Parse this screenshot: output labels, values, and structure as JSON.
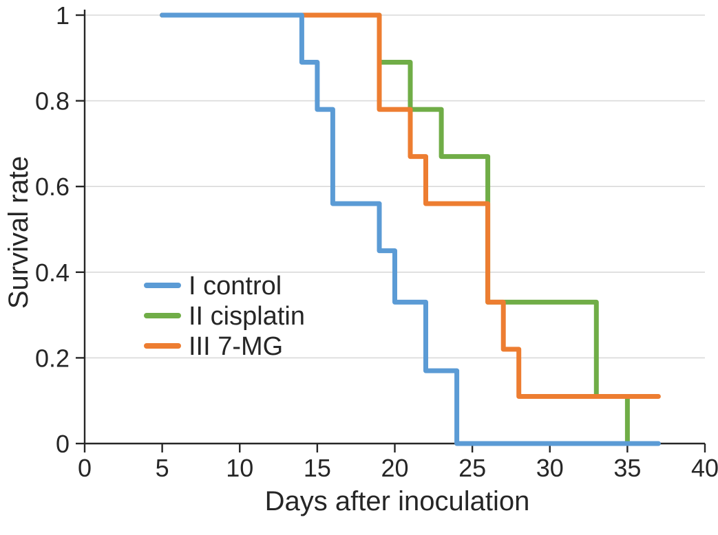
{
  "figure": {
    "background": "#ffffff",
    "text_color": "#262626",
    "axis_color": "#262626",
    "gridline_color": "#d9d9d9"
  },
  "chart_data": {
    "type": "line",
    "subtype": "step-survival",
    "title": "",
    "xlabel": "Days after inoculation",
    "ylabel": "Survival rate",
    "xlim": [
      0,
      40
    ],
    "ylim": [
      0,
      1
    ],
    "xticks": [
      0,
      5,
      10,
      15,
      20,
      25,
      30,
      35,
      40
    ],
    "xtick_labels": [
      "0",
      "5",
      "10",
      "15",
      "20",
      "25",
      "30",
      "35",
      "40"
    ],
    "yticks": [
      0,
      0.2,
      0.4,
      0.6,
      0.8,
      1
    ],
    "ytick_labels": [
      "0",
      "0.2",
      "0.4",
      "0.6",
      "0.8",
      "1"
    ],
    "grid": "horizontal-only",
    "legend_position": "inside-middle-left",
    "legend": [
      {
        "label": "I control",
        "color": "#5B9BD5"
      },
      {
        "label": "II cisplatin",
        "color": "#70AD47"
      },
      {
        "label": "III 7-MG",
        "color": "#ED7D31"
      }
    ],
    "series": [
      {
        "name": "I control",
        "color": "#5B9BD5",
        "zorder": 3,
        "points": [
          [
            5,
            1
          ],
          [
            14,
            1
          ],
          [
            14,
            0.89
          ],
          [
            15,
            0.89
          ],
          [
            15,
            0.78
          ],
          [
            16,
            0.78
          ],
          [
            16,
            0.56
          ],
          [
            19,
            0.56
          ],
          [
            19,
            0.45
          ],
          [
            20,
            0.45
          ],
          [
            20,
            0.33
          ],
          [
            22,
            0.33
          ],
          [
            22,
            0.17
          ],
          [
            24,
            0.17
          ],
          [
            24,
            0
          ],
          [
            37,
            0
          ]
        ]
      },
      {
        "name": "II cisplatin",
        "color": "#70AD47",
        "zorder": 1,
        "points": [
          [
            5,
            1
          ],
          [
            19,
            1
          ],
          [
            19,
            0.89
          ],
          [
            21,
            0.89
          ],
          [
            21,
            0.78
          ],
          [
            23,
            0.78
          ],
          [
            23,
            0.67
          ],
          [
            26,
            0.67
          ],
          [
            26,
            0.33
          ],
          [
            33,
            0.33
          ],
          [
            33,
            0.11
          ],
          [
            35,
            0.11
          ],
          [
            35,
            0
          ]
        ]
      },
      {
        "name": "III 7-MG",
        "color": "#ED7D31",
        "zorder": 2,
        "points": [
          [
            5,
            1
          ],
          [
            19,
            1
          ],
          [
            19,
            0.78
          ],
          [
            21,
            0.78
          ],
          [
            21,
            0.67
          ],
          [
            22,
            0.67
          ],
          [
            22,
            0.56
          ],
          [
            26,
            0.56
          ],
          [
            26,
            0.33
          ],
          [
            27,
            0.33
          ],
          [
            27,
            0.22
          ],
          [
            28,
            0.22
          ],
          [
            28,
            0.11
          ],
          [
            37,
            0.11
          ]
        ]
      }
    ]
  }
}
